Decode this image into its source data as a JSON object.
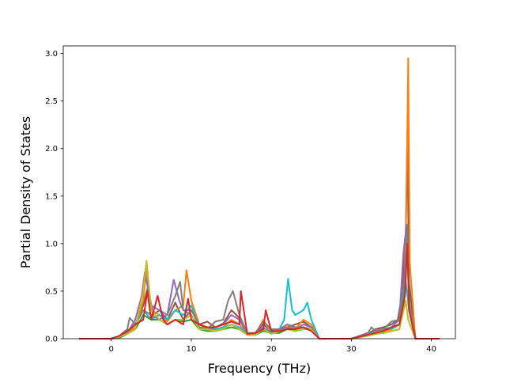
{
  "chart_data": {
    "type": "line",
    "title": "",
    "xlabel": "Frequency (THz)",
    "ylabel": "Partial Density of States",
    "xlim": [
      -6.0,
      43.0
    ],
    "ylim": [
      0.0,
      3.08
    ],
    "x_ticks": [
      0,
      10,
      20,
      30,
      40
    ],
    "y_ticks": [
      0.0,
      0.5,
      1.0,
      1.5,
      2.0,
      2.5,
      3.0
    ],
    "x_tick_labels": [
      "0",
      "10",
      "20",
      "30",
      "40"
    ],
    "y_tick_labels": [
      "0.0",
      "0.5",
      "1.0",
      "1.5",
      "2.0",
      "2.5",
      "3.0"
    ],
    "grid": false,
    "legend": "none",
    "series": [
      {
        "color": "#8c564b",
        "x": [
          -4,
          0,
          1,
          2,
          3,
          4,
          4.6,
          5.2,
          6,
          7,
          8,
          9,
          10,
          11,
          12,
          13,
          14,
          15,
          16,
          17,
          18,
          19,
          20,
          21,
          22,
          23,
          24,
          25,
          26,
          30,
          32,
          33,
          34,
          35,
          35.8,
          36.4,
          36.8,
          37.0,
          37.2,
          38,
          41
        ],
        "y": [
          0,
          0,
          0.02,
          0.07,
          0.15,
          0.35,
          0.55,
          0.25,
          0.3,
          0.2,
          0.38,
          0.2,
          0.3,
          0.15,
          0.18,
          0.12,
          0.16,
          0.3,
          0.22,
          0.05,
          0.06,
          0.15,
          0.08,
          0.1,
          0.12,
          0.15,
          0.18,
          0.12,
          0,
          0,
          0.05,
          0.1,
          0.12,
          0.15,
          0.2,
          0.5,
          1.1,
          2.2,
          0.6,
          0,
          0
        ]
      },
      {
        "color": "#ff7f0e",
        "x": [
          -4,
          0,
          1,
          2,
          3,
          4,
          4.4,
          5,
          6,
          7,
          8,
          9,
          9.4,
          10,
          11,
          12,
          13,
          14,
          15,
          16,
          17,
          18,
          19,
          20,
          21,
          22,
          23,
          24,
          25,
          26,
          30,
          32,
          33,
          34,
          35,
          36,
          36.6,
          36.9,
          37.1,
          37.3,
          38,
          41
        ],
        "y": [
          0,
          0,
          0.02,
          0.06,
          0.12,
          0.4,
          0.75,
          0.3,
          0.25,
          0.18,
          0.3,
          0.35,
          0.72,
          0.4,
          0.15,
          0.12,
          0.1,
          0.12,
          0.2,
          0.15,
          0.05,
          0.05,
          0.2,
          0.06,
          0.08,
          0.15,
          0.1,
          0.2,
          0.15,
          0,
          0,
          0.04,
          0.06,
          0.08,
          0.1,
          0.15,
          0.4,
          1.5,
          2.95,
          0.8,
          0,
          0
        ]
      },
      {
        "color": "#17becf",
        "x": [
          -4,
          0,
          1,
          2,
          3,
          4,
          5,
          6,
          7,
          8,
          9,
          10,
          11,
          12,
          13,
          14,
          15,
          16,
          17,
          18,
          19,
          20,
          21,
          21.6,
          22.1,
          22.6,
          23,
          24,
          24.5,
          25,
          26,
          30,
          32,
          33,
          34,
          35,
          36,
          36.8,
          37.2,
          38,
          41
        ],
        "y": [
          0,
          0,
          0.02,
          0.08,
          0.15,
          0.3,
          0.2,
          0.25,
          0.2,
          0.3,
          0.25,
          0.35,
          0.12,
          0.1,
          0.1,
          0.12,
          0.15,
          0.12,
          0.05,
          0.05,
          0.1,
          0.08,
          0.1,
          0.2,
          0.63,
          0.3,
          0.25,
          0.3,
          0.38,
          0.2,
          0,
          0,
          0.05,
          0.08,
          0.1,
          0.1,
          0.15,
          0.6,
          0.3,
          0,
          0
        ]
      },
      {
        "color": "#2ca02c",
        "x": [
          -4,
          0,
          1,
          2,
          3,
          4,
          5,
          6,
          7,
          8,
          9,
          10,
          11,
          12,
          13,
          14,
          15,
          16,
          17,
          18,
          19,
          20,
          21,
          22,
          23,
          24,
          25,
          26,
          30,
          32,
          33,
          34,
          35,
          36,
          36.7,
          37.0,
          37.3,
          38,
          41
        ],
        "y": [
          0,
          0,
          0.01,
          0.05,
          0.1,
          0.25,
          0.2,
          0.2,
          0.15,
          0.2,
          0.18,
          0.2,
          0.1,
          0.08,
          0.08,
          0.1,
          0.12,
          0.1,
          0.04,
          0.04,
          0.08,
          0.06,
          0.06,
          0.1,
          0.08,
          0.1,
          0.1,
          0,
          0,
          0.03,
          0.05,
          0.06,
          0.08,
          0.1,
          0.5,
          1.12,
          0.3,
          0,
          0
        ]
      },
      {
        "color": "#9467bd",
        "x": [
          -4,
          0,
          1,
          2,
          3,
          3.8,
          4.2,
          5,
          6,
          7,
          7.8,
          8.5,
          9,
          10,
          11,
          12,
          13,
          14,
          15,
          16,
          17,
          18,
          19,
          20,
          21,
          22,
          23,
          24,
          25,
          26,
          30,
          32,
          33,
          34,
          35,
          36,
          36.5,
          36.9,
          37.2,
          38,
          41
        ],
        "y": [
          0,
          0,
          0.02,
          0.06,
          0.2,
          0.45,
          0.7,
          0.35,
          0.3,
          0.25,
          0.62,
          0.4,
          0.3,
          0.25,
          0.12,
          0.1,
          0.12,
          0.15,
          0.25,
          0.2,
          0.05,
          0.05,
          0.12,
          0.06,
          0.1,
          0.12,
          0.1,
          0.15,
          0.12,
          0,
          0,
          0.06,
          0.08,
          0.1,
          0.12,
          0.2,
          0.9,
          1.2,
          0.4,
          0,
          0
        ]
      },
      {
        "color": "#7f7f7f",
        "x": [
          -4,
          0,
          1,
          2,
          2.3,
          3,
          4,
          5,
          6,
          7,
          8,
          8.6,
          9,
          10,
          11,
          12,
          13,
          14,
          14.6,
          15.2,
          16,
          17,
          18,
          19,
          20,
          21,
          22,
          23,
          24,
          25,
          26,
          30,
          32,
          32.5,
          33,
          34,
          35,
          36,
          36.6,
          37.0,
          37.2,
          38,
          41
        ],
        "y": [
          0,
          0,
          0.03,
          0.1,
          0.22,
          0.15,
          0.3,
          0.25,
          0.2,
          0.25,
          0.45,
          0.6,
          0.3,
          0.3,
          0.15,
          0.1,
          0.18,
          0.2,
          0.4,
          0.5,
          0.25,
          0.06,
          0.06,
          0.18,
          0.1,
          0.1,
          0.15,
          0.12,
          0.12,
          0.1,
          0,
          0,
          0.05,
          0.12,
          0.08,
          0.1,
          0.18,
          0.2,
          0.6,
          1.2,
          0.4,
          0,
          0
        ]
      },
      {
        "color": "#bcbd22",
        "x": [
          -4,
          0,
          1,
          2,
          3,
          4,
          4.4,
          5,
          6,
          7,
          8,
          9,
          10,
          11,
          12,
          13,
          14,
          15,
          16,
          17,
          18,
          19,
          20,
          21,
          22,
          23,
          24,
          25,
          26,
          30,
          32,
          33,
          34,
          35,
          36,
          36.8,
          37.1,
          38,
          41
        ],
        "y": [
          0,
          0,
          0.02,
          0.05,
          0.1,
          0.5,
          0.82,
          0.3,
          0.2,
          0.15,
          0.2,
          0.2,
          0.25,
          0.1,
          0.1,
          0.08,
          0.1,
          0.15,
          0.1,
          0.04,
          0.04,
          0.1,
          0.05,
          0.08,
          0.1,
          0.08,
          0.1,
          0.1,
          0,
          0,
          0.03,
          0.05,
          0.06,
          0.08,
          0.1,
          0.4,
          0.2,
          0,
          0
        ]
      },
      {
        "color": "#d62728",
        "x": [
          -4,
          0,
          1,
          2,
          3,
          4,
          4.5,
          5,
          5.8,
          6.5,
          7,
          8,
          9,
          9.6,
          10,
          11,
          12,
          13,
          14,
          15,
          16,
          16.2,
          17,
          18,
          19,
          19.3,
          20,
          21,
          22,
          23,
          24,
          25,
          26,
          30,
          32,
          33,
          34,
          35,
          36,
          36.7,
          37.0,
          37.2,
          38,
          41
        ],
        "y": [
          0,
          0,
          0.03,
          0.08,
          0.15,
          0.2,
          0.5,
          0.2,
          0.45,
          0.2,
          0.15,
          0.2,
          0.15,
          0.42,
          0.2,
          0.15,
          0.12,
          0.12,
          0.15,
          0.18,
          0.15,
          0.5,
          0.05,
          0.06,
          0.1,
          0.3,
          0.08,
          0.08,
          0.1,
          0.1,
          0.12,
          0.08,
          0,
          0,
          0.04,
          0.06,
          0.08,
          0.12,
          0.15,
          0.45,
          1.0,
          0.3,
          0,
          0
        ]
      }
    ]
  }
}
